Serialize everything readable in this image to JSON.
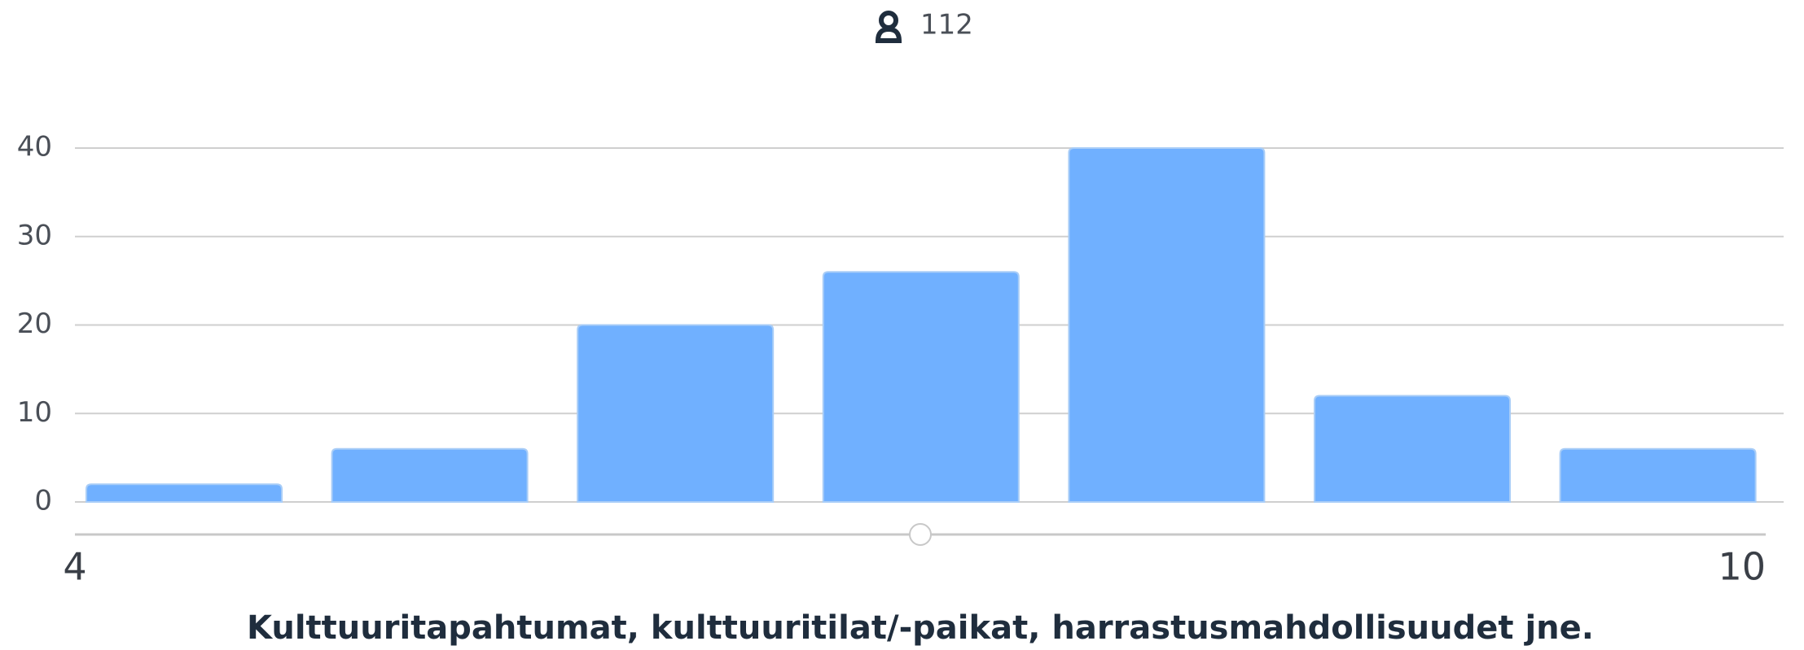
{
  "respondents": "112",
  "chart_data": {
    "type": "bar",
    "title": "Kulttuuritapahtumat, kulttuuritilat/-paikat, harrastusmahdollisuudet jne.",
    "values": [
      2,
      6,
      20,
      26,
      40,
      12,
      6
    ],
    "color": "#70b0ff",
    "ylim": [
      0,
      40
    ],
    "yticks": [
      0,
      10,
      20,
      30,
      40
    ],
    "grid": true,
    "slider": {
      "xlim": [
        4,
        10
      ],
      "xticks": [
        4,
        10
      ],
      "value": 7
    }
  }
}
